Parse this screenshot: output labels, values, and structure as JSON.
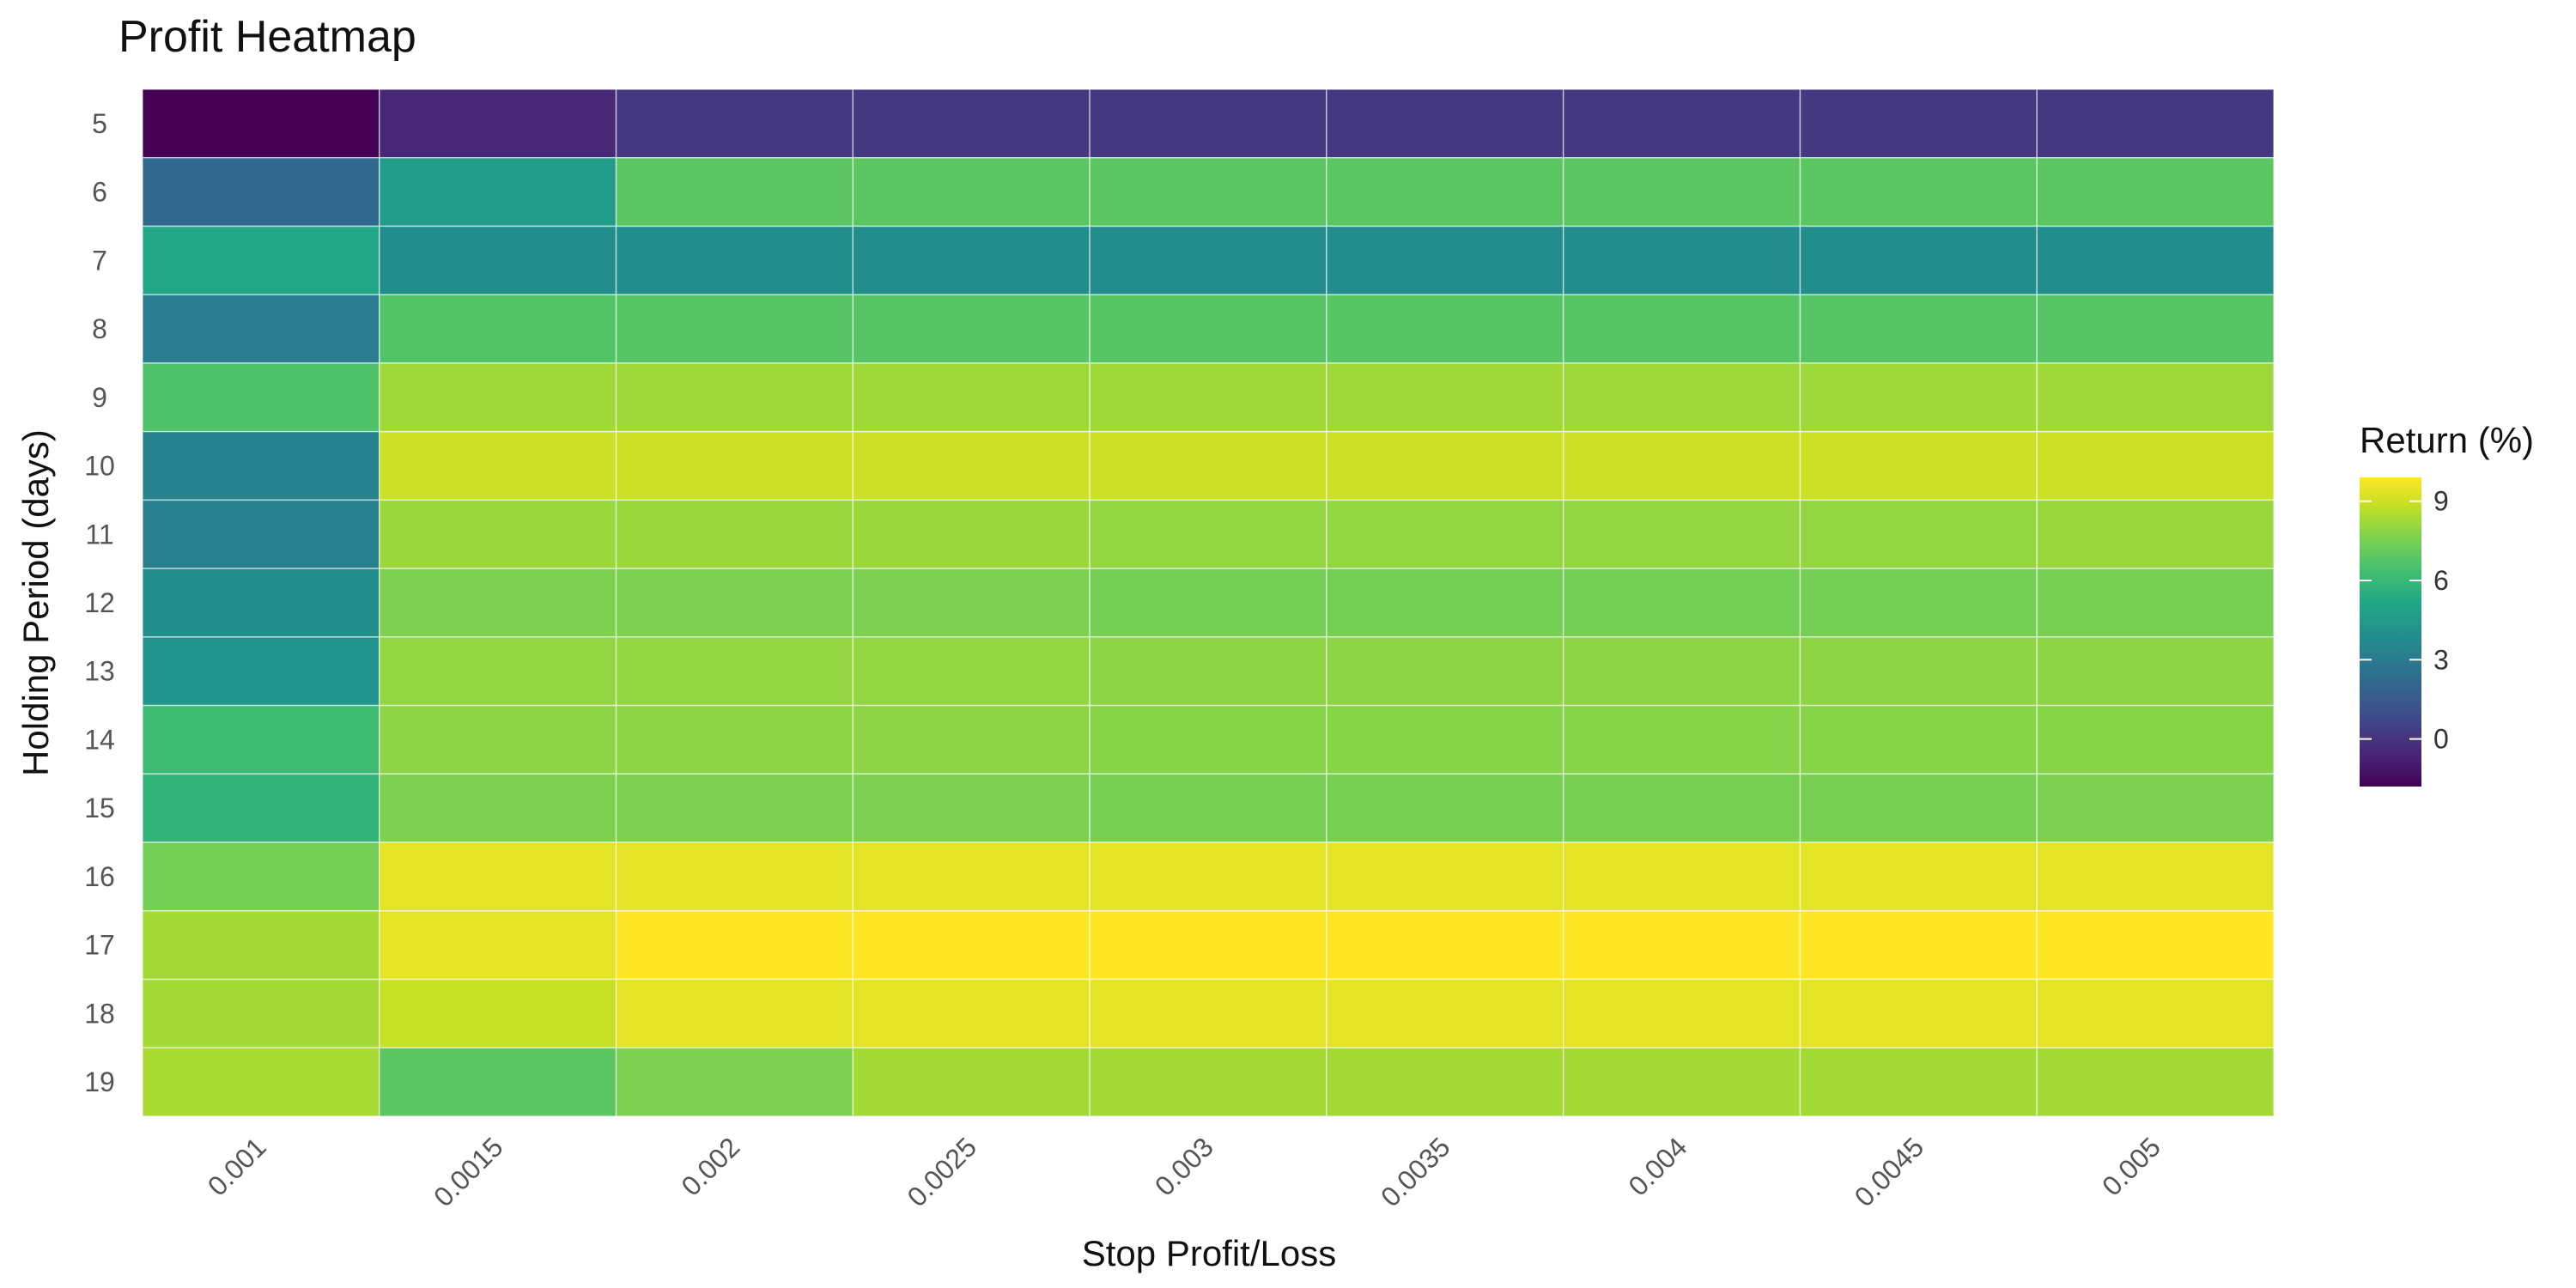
{
  "chart_data": {
    "type": "heatmap",
    "title": "Profit Heatmap",
    "xlabel": "Stop Profit/Loss",
    "ylabel": "Holding Period (days)",
    "x": [
      "0.001",
      "0.0015",
      "0.002",
      "0.0025",
      "0.003",
      "0.0035",
      "0.004",
      "0.0045",
      "0.005"
    ],
    "y": [
      "5",
      "6",
      "7",
      "8",
      "9",
      "10",
      "11",
      "12",
      "13",
      "14",
      "15",
      "16",
      "17",
      "18",
      "19"
    ],
    "values": [
      [
        -1.8,
        -0.5,
        0.1,
        0.1,
        0.1,
        0.1,
        0.1,
        0.1,
        0.1
      ],
      [
        2.2,
        4.6,
        6.9,
        6.9,
        6.9,
        6.9,
        6.9,
        6.9,
        6.9
      ],
      [
        5.2,
        3.9,
        3.9,
        3.9,
        3.8,
        3.8,
        3.8,
        3.9,
        3.9
      ],
      [
        3.0,
        6.7,
        6.8,
        6.8,
        6.8,
        6.8,
        6.8,
        6.8,
        6.8
      ],
      [
        6.6,
        8.2,
        8.2,
        8.2,
        8.2,
        8.2,
        8.2,
        8.2,
        8.2
      ],
      [
        3.4,
        9.0,
        9.0,
        9.0,
        9.0,
        9.0,
        9.0,
        9.0,
        9.0
      ],
      [
        3.2,
        8.1,
        8.1,
        8.1,
        8.0,
        8.0,
        8.0,
        8.0,
        8.1
      ],
      [
        3.8,
        7.6,
        7.6,
        7.6,
        7.4,
        7.4,
        7.4,
        7.4,
        7.5
      ],
      [
        4.2,
        8.0,
        8.0,
        8.0,
        7.9,
        7.9,
        7.9,
        7.9,
        7.9
      ],
      [
        6.2,
        7.9,
        7.9,
        7.9,
        7.8,
        7.8,
        7.8,
        7.8,
        7.8
      ],
      [
        5.8,
        7.6,
        7.6,
        7.6,
        7.5,
        7.5,
        7.5,
        7.5,
        7.6
      ],
      [
        7.4,
        9.4,
        9.4,
        9.4,
        9.4,
        9.4,
        9.4,
        9.4,
        9.4
      ],
      [
        8.3,
        9.4,
        9.9,
        9.9,
        9.9,
        9.9,
        9.9,
        9.9,
        9.9
      ],
      [
        8.3,
        8.9,
        9.4,
        9.4,
        9.4,
        9.4,
        9.4,
        9.4,
        9.4
      ],
      [
        8.4,
        6.9,
        7.6,
        8.3,
        8.3,
        8.3,
        8.3,
        8.3,
        8.3
      ]
    ],
    "colorscale": "viridis",
    "zlim": [
      -1.8,
      9.9
    ],
    "legend": {
      "title": "Return (%)",
      "ticks": [
        0,
        3,
        6,
        9
      ],
      "position": "right"
    },
    "grid": false
  }
}
